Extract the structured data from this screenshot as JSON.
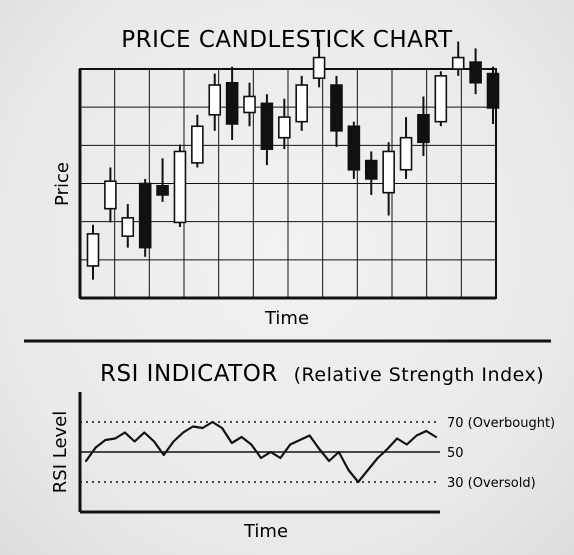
{
  "divider_color": "#111111",
  "charts": [
    {
      "type": "candlestick",
      "title": "PRICE CANDLESTICK CHART",
      "xlabel": "Time",
      "ylabel": "Price",
      "grid": true,
      "ylim": [
        0,
        100
      ],
      "up_color": "#ffffff",
      "down_color": "#111111",
      "candles": [
        {
          "open": 14,
          "close": 28,
          "high": 32,
          "low": 8
        },
        {
          "open": 39,
          "close": 51,
          "high": 57,
          "low": 33
        },
        {
          "open": 27,
          "close": 35,
          "high": 41,
          "low": 22
        },
        {
          "open": 50,
          "close": 22,
          "high": 52,
          "low": 18
        },
        {
          "open": 49,
          "close": 45,
          "high": 61,
          "low": 42
        },
        {
          "open": 33,
          "close": 64,
          "high": 67,
          "low": 31
        },
        {
          "open": 59,
          "close": 75,
          "high": 80,
          "low": 57
        },
        {
          "open": 80,
          "close": 93,
          "high": 98,
          "low": 73
        },
        {
          "open": 94,
          "close": 76,
          "high": 101,
          "low": 69
        },
        {
          "open": 81,
          "close": 88,
          "high": 94,
          "low": 75
        },
        {
          "open": 85,
          "close": 65,
          "high": 89,
          "low": 58
        },
        {
          "open": 70,
          "close": 79,
          "high": 87,
          "low": 65
        },
        {
          "open": 77,
          "close": 93,
          "high": 97,
          "low": 73
        },
        {
          "open": 96,
          "close": 105,
          "high": 113,
          "low": 92
        },
        {
          "open": 93,
          "close": 73,
          "high": 97,
          "low": 66
        },
        {
          "open": 75,
          "close": 56,
          "high": 77,
          "low": 52
        },
        {
          "open": 60,
          "close": 52,
          "high": 64,
          "low": 45
        },
        {
          "open": 46,
          "close": 64,
          "high": 68,
          "low": 36
        },
        {
          "open": 56,
          "close": 70,
          "high": 79,
          "low": 52
        },
        {
          "open": 80,
          "close": 68,
          "high": 88,
          "low": 62
        },
        {
          "open": 77,
          "close": 97,
          "high": 99,
          "low": 75
        },
        {
          "open": 100,
          "close": 105,
          "high": 112,
          "low": 97
        },
        {
          "open": 103,
          "close": 94,
          "high": 109,
          "low": 89
        },
        {
          "open": 98,
          "close": 83,
          "high": 101,
          "low": 76
        }
      ]
    },
    {
      "type": "line",
      "title": "RSI INDICATOR (Relative Strength Index)",
      "title_main": "RSI INDICATOR",
      "title_paren": "(Relative Strength Index)",
      "xlabel": "Time",
      "ylabel": "RSI Level",
      "ylim": [
        10,
        90
      ],
      "reference_lines": [
        {
          "value": 70,
          "label": "70 (Overbought)",
          "style": "dotted"
        },
        {
          "value": 50,
          "label": "50",
          "style": "solid"
        },
        {
          "value": 30,
          "label": "30 (Oversold)",
          "style": "dotted"
        }
      ],
      "series": [
        {
          "values": [
            44,
            53,
            58,
            59,
            63,
            57,
            63,
            57,
            48,
            57,
            63,
            67,
            66,
            70,
            66,
            56,
            60,
            55,
            46,
            50,
            46,
            55,
            58,
            61,
            52,
            44,
            50,
            38,
            30,
            38,
            46,
            52,
            59,
            55,
            61,
            64,
            60
          ]
        }
      ]
    }
  ]
}
